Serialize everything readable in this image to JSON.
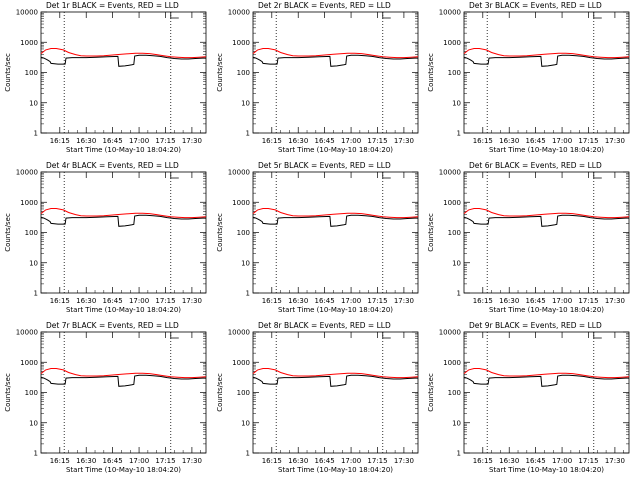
{
  "chart_data": {
    "type": "line",
    "scale": "log",
    "ylim": [
      1,
      10000
    ],
    "yticks": [
      1,
      10,
      100,
      1000,
      10000
    ],
    "ytick_labels": [
      "1",
      "10",
      "100",
      "1000",
      "10000"
    ],
    "ylabel": "Counts/sec",
    "xlabel": "Start Time (10-May-10 18:04:20)",
    "xtick_labels": [
      "16:15",
      "16:30",
      "16:45",
      "17:00",
      "17:15",
      "17:30"
    ],
    "xtick_minutes": [
      15,
      30,
      45,
      60,
      75,
      90
    ],
    "xlim_minutes": [
      4.33,
      98
    ],
    "colors": {
      "events": "#000000",
      "lld": "#ff0000",
      "axis": "#000000"
    },
    "panels": [
      {
        "title": "Det 1r  BLACK = Events, RED = LLD",
        "dotted_minutes": [
          17.5,
          78
        ]
      },
      {
        "title": "Det 2r  BLACK = Events, RED = LLD",
        "dotted_minutes": [
          17.5,
          78
        ]
      },
      {
        "title": "Det 3r  BLACK = Events, RED = LLD",
        "dotted_minutes": [
          17.5,
          78
        ]
      },
      {
        "title": "Det 4r  BLACK = Events, RED = LLD",
        "dotted_minutes": [
          17.5,
          78
        ]
      },
      {
        "title": "Det 5r  BLACK = Events, RED = LLD",
        "dotted_minutes": [
          17.5,
          78
        ]
      },
      {
        "title": "Det 6r  BLACK = Events, RED = LLD",
        "dotted_minutes": [
          17.5,
          78
        ]
      },
      {
        "title": "Det 7r  BLACK = Events, RED = LLD",
        "dotted_minutes": [
          17.5,
          78
        ]
      },
      {
        "title": "Det 8r  BLACK = Events, RED = LLD",
        "dotted_minutes": [
          17.5,
          78
        ]
      },
      {
        "title": "Det 9r  BLACK = Events, RED = LLD",
        "dotted_minutes": [
          17.5,
          78
        ]
      }
    ],
    "series": [
      {
        "name": "LLD",
        "color": "#ff0000",
        "x_minutes": [
          4.33,
          7,
          10,
          13,
          17,
          20,
          24,
          27,
          30,
          33,
          36,
          40,
          45,
          50,
          55,
          58,
          62,
          66,
          70,
          74,
          78,
          82,
          86,
          90,
          94,
          98
        ],
        "values": [
          420,
          560,
          620,
          620,
          560,
          460,
          390,
          360,
          350,
          350,
          350,
          360,
          380,
          400,
          420,
          430,
          430,
          420,
          390,
          360,
          330,
          320,
          310,
          310,
          320,
          330
        ]
      },
      {
        "name": "Events",
        "color": "#000000",
        "x_minutes": [
          4.33,
          6,
          8,
          9.5,
          10,
          14,
          18,
          18.5,
          22,
          26,
          30,
          36,
          42,
          48,
          48.5,
          52,
          56,
          57,
          57.5,
          60,
          64,
          68,
          72,
          76,
          80,
          84,
          88,
          92,
          96,
          98
        ],
        "values": [
          320,
          300,
          260,
          230,
          200,
          190,
          190,
          300,
          310,
          310,
          310,
          320,
          330,
          340,
          160,
          165,
          180,
          185,
          350,
          370,
          370,
          360,
          340,
          310,
          290,
          280,
          280,
          290,
          300,
          300
        ]
      }
    ]
  }
}
